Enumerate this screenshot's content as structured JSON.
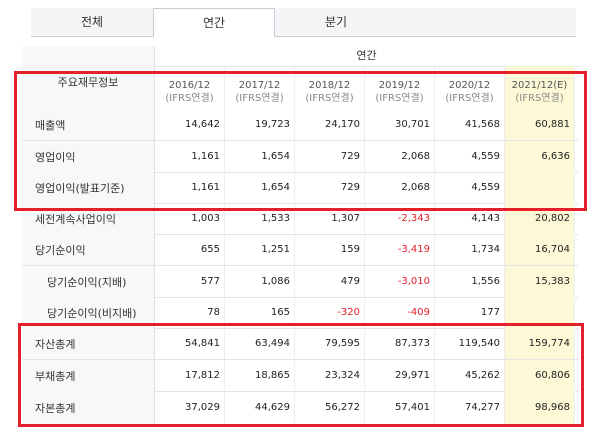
{
  "tabs": [
    "전체",
    "연간",
    "분기"
  ],
  "active_tab": 1,
  "header": {
    "period_group": "연간",
    "row_label": "주요재무정보",
    "columns": [
      {
        "year": "2016/12",
        "basis": "(IFRS연결)"
      },
      {
        "year": "2017/12",
        "basis": "(IFRS연결)"
      },
      {
        "year": "2018/12",
        "basis": "(IFRS연결)"
      },
      {
        "year": "2019/12",
        "basis": "(IFRS연결)"
      },
      {
        "year": "2020/12",
        "basis": "(IFRS연결)"
      },
      {
        "year": "2021/12(E)",
        "basis": "(IFRS연결)"
      }
    ]
  },
  "rows": [
    {
      "label": "매출액",
      "values": [
        "14,642",
        "19,723",
        "24,170",
        "30,701",
        "41,568",
        "60,881"
      ],
      "sub": false
    },
    {
      "label": "영업이익",
      "values": [
        "1,161",
        "1,654",
        "729",
        "2,068",
        "4,559",
        "6,636"
      ],
      "sub": false
    },
    {
      "label": "영업이익(발표기준)",
      "values": [
        "1,161",
        "1,654",
        "729",
        "2,068",
        "4,559",
        ""
      ],
      "sub": false
    },
    {
      "label": "세전계속사업이익",
      "values": [
        "1,003",
        "1,533",
        "1,307",
        "-2,343",
        "4,143",
        "20,802"
      ],
      "sub": false
    },
    {
      "label": "당기순이익",
      "values": [
        "655",
        "1,251",
        "159",
        "-3,419",
        "1,734",
        "16,704"
      ],
      "sub": false
    },
    {
      "label": "당기순이익(지배)",
      "values": [
        "577",
        "1,086",
        "479",
        "-3,010",
        "1,556",
        "15,383"
      ],
      "sub": true
    },
    {
      "label": "당기순이익(비지배)",
      "values": [
        "78",
        "165",
        "-320",
        "-409",
        "177",
        ""
      ],
      "sub": true
    },
    {
      "label": "자산총계",
      "values": [
        "54,841",
        "63,494",
        "79,595",
        "87,373",
        "119,540",
        "159,774"
      ],
      "sub": false
    },
    {
      "label": "부채총계",
      "values": [
        "17,812",
        "18,865",
        "23,324",
        "29,971",
        "45,262",
        "60,806"
      ],
      "sub": false
    },
    {
      "label": "자본총계",
      "values": [
        "37,029",
        "44,629",
        "56,272",
        "57,401",
        "74,277",
        "98,968"
      ],
      "sub": false
    }
  ],
  "colors": {
    "highlight": "#fdf9d7",
    "negative": "#e4212b",
    "annotation": "#e4212b"
  }
}
